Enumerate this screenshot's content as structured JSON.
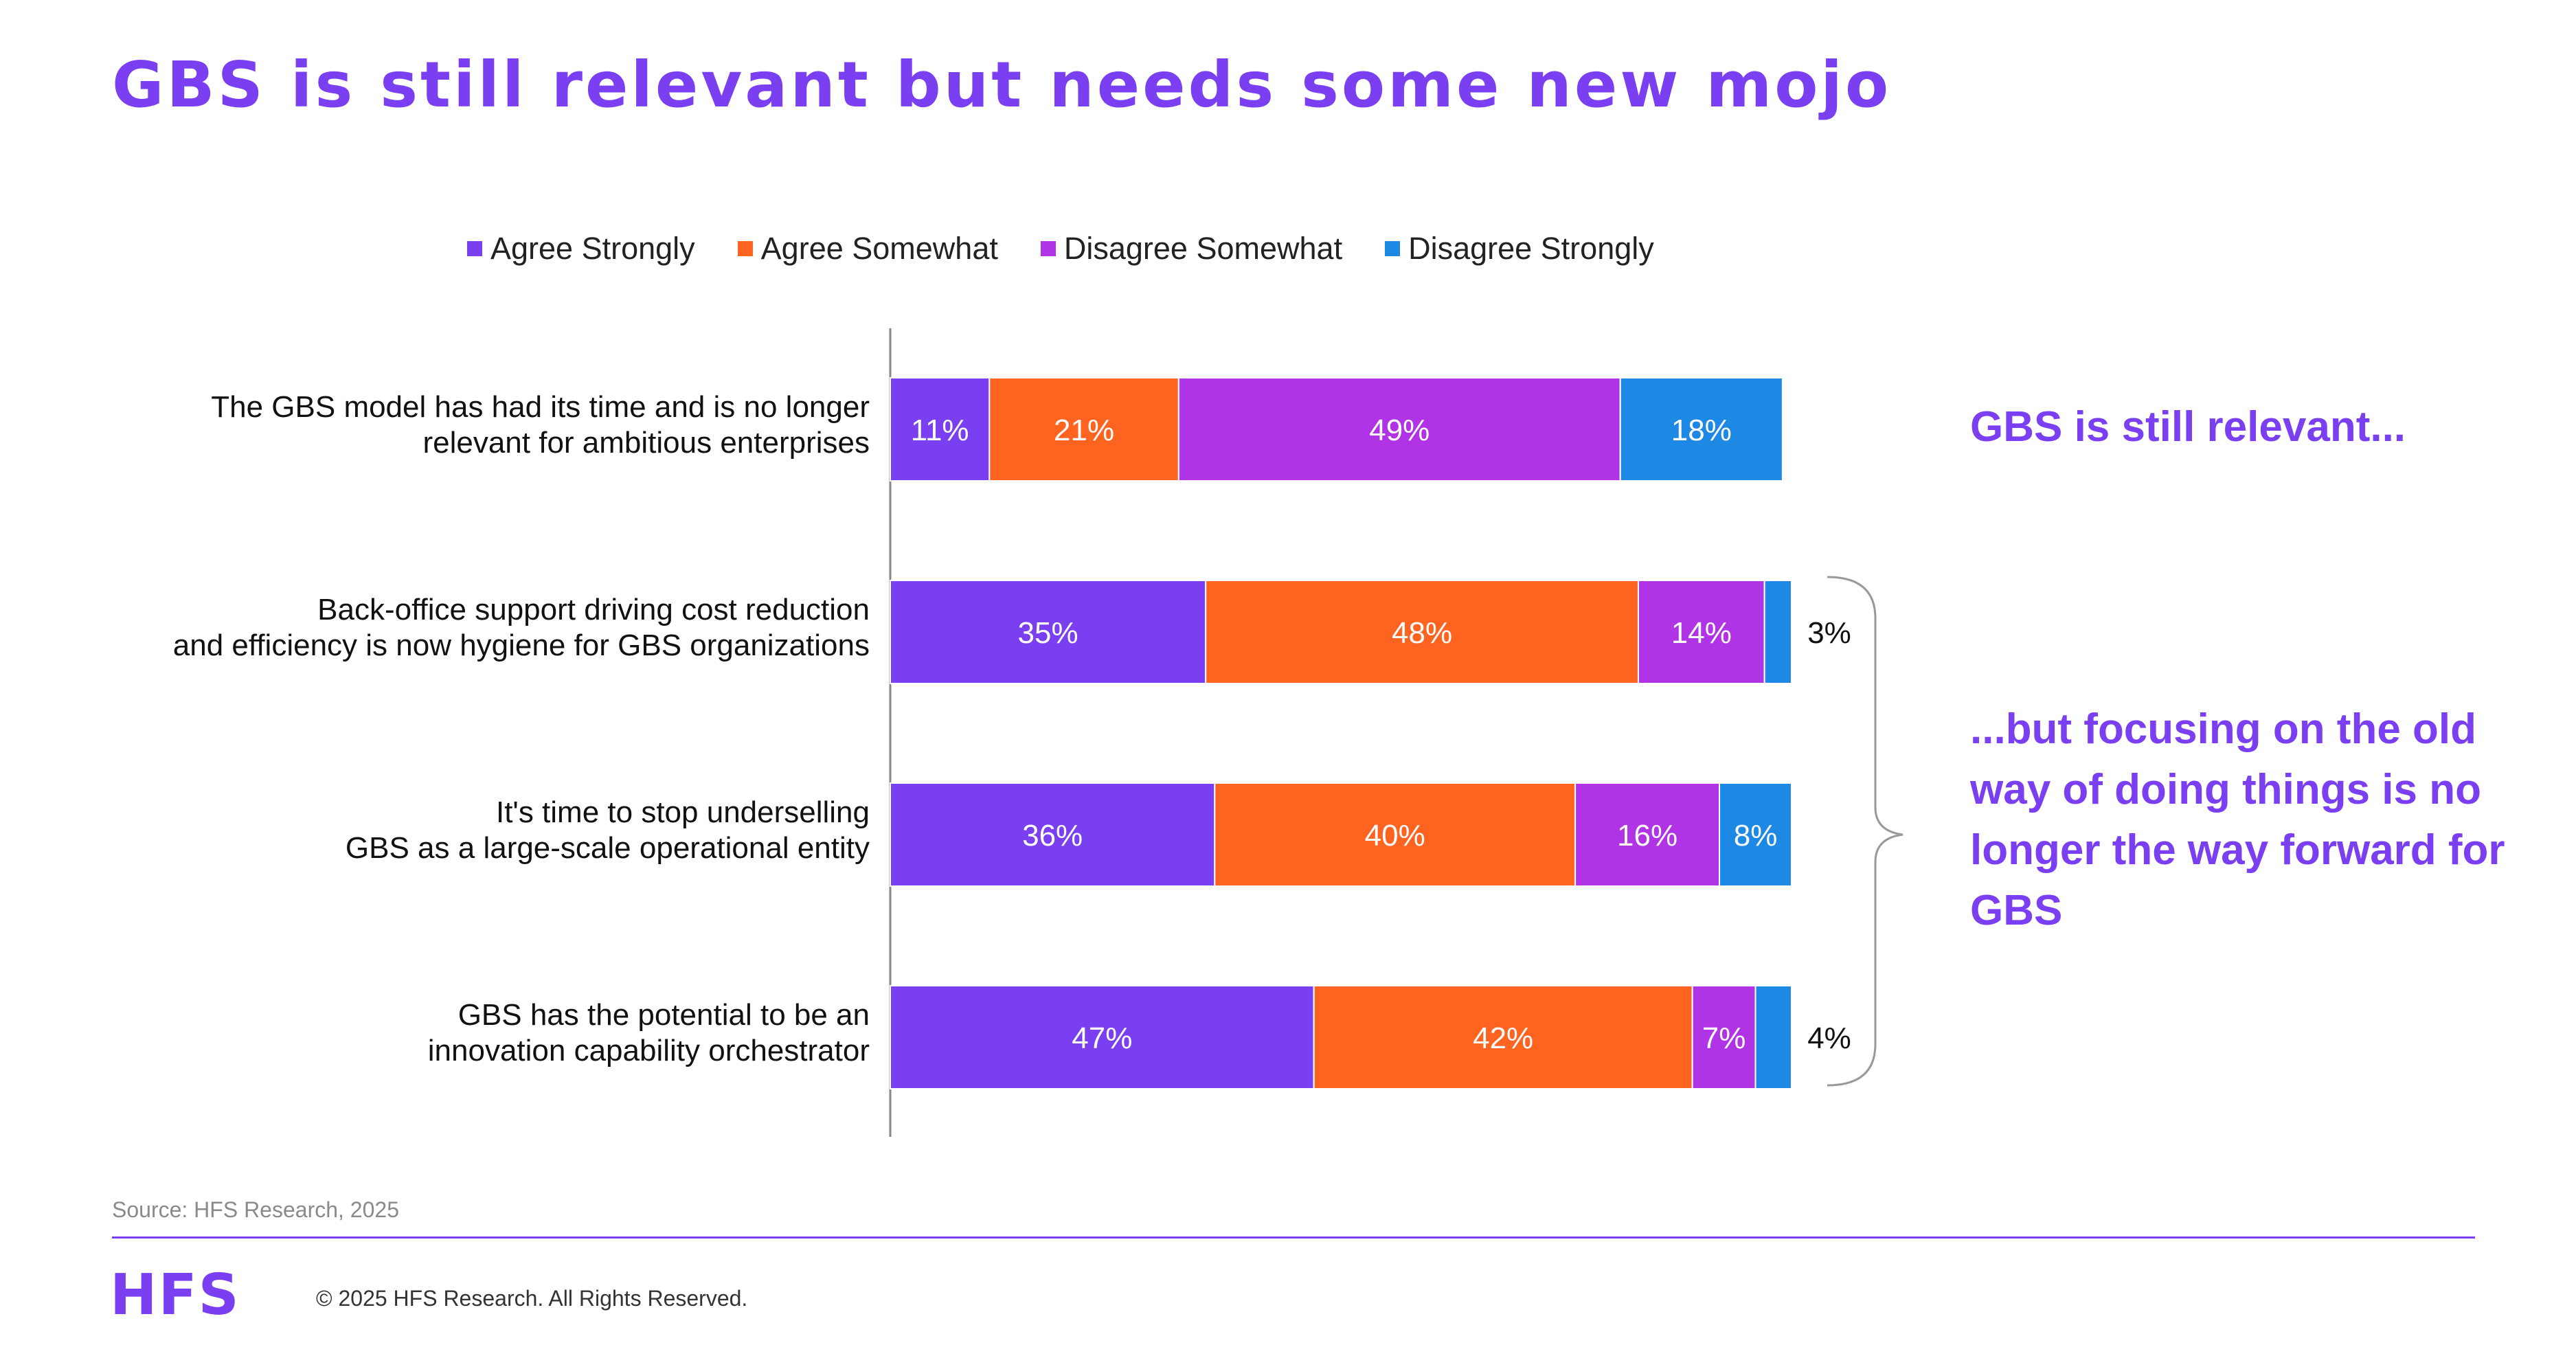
{
  "title": "GBS is still relevant but needs some new mojo",
  "legend": [
    "Agree Strongly",
    "Agree Somewhat",
    "Disagree Somewhat",
    "Disagree Strongly"
  ],
  "colors": {
    "accent": "#7B3FF2",
    "series": [
      "#7B3FF2",
      "#FF6320",
      "#B033E6",
      "#1E88E5"
    ]
  },
  "chart_data": {
    "type": "bar",
    "orientation": "horizontal",
    "stacked": true,
    "categories": [
      [
        "The GBS model has had its time and is no longer",
        "relevant for ambitious enterprises"
      ],
      [
        "Back-office support driving cost reduction",
        "and efficiency is now hygiene for GBS organizations"
      ],
      [
        "It's time to stop underselling",
        "GBS as a large-scale operational entity"
      ],
      [
        "GBS has the potential to be an",
        "innovation capability orchestrator"
      ]
    ],
    "series": [
      {
        "name": "Agree Strongly",
        "values": [
          11,
          35,
          36,
          47
        ]
      },
      {
        "name": "Agree Somewhat",
        "values": [
          21,
          48,
          40,
          42
        ]
      },
      {
        "name": "Disagree Somewhat",
        "values": [
          49,
          14,
          16,
          7
        ]
      },
      {
        "name": "Disagree Strongly",
        "values": [
          18,
          3,
          8,
          4
        ]
      }
    ],
    "value_suffix": "%",
    "legend_position": "top",
    "grid": false
  },
  "annotations": {
    "top": "GBS is still relevant...",
    "bottom": "...but focusing on the old way of doing things is no longer the way forward for GBS"
  },
  "footer": {
    "source": "Source: HFS Research, 2025",
    "logo": "HFS",
    "copyright": "© 2025 HFS Research. All Rights Reserved."
  }
}
